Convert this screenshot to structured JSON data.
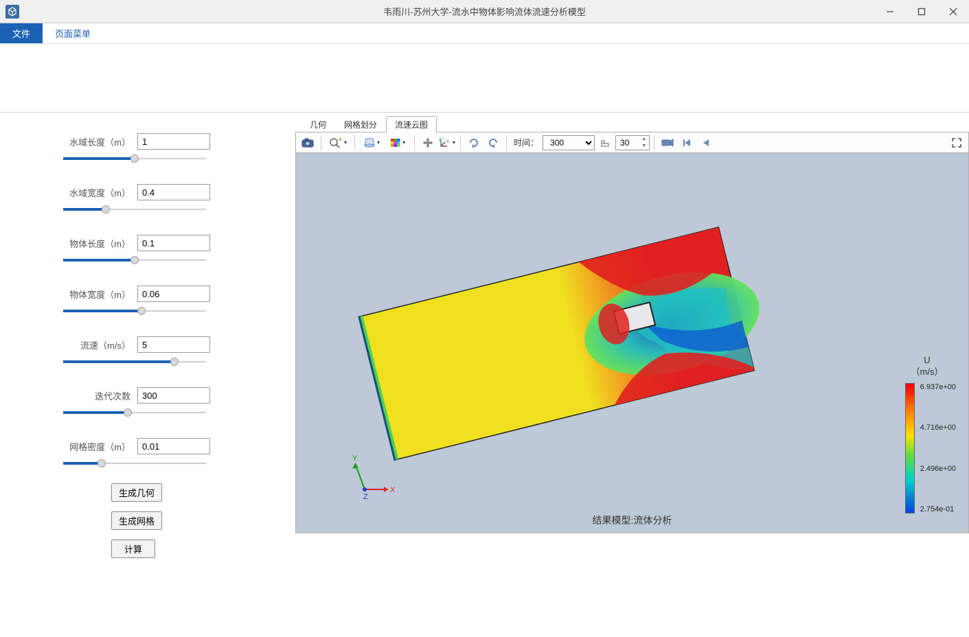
{
  "window": {
    "title": "韦雨川-苏州大学-流水中物体影响流体流速分析模型",
    "icon_bg": "#3b6ea5"
  },
  "menu": {
    "items": [
      "文件",
      "页面菜单"
    ],
    "active_index": 0
  },
  "params": [
    {
      "label": "水域长度（m）",
      "value": "1",
      "slider_fill_pct": 50,
      "thumb_pct": 50
    },
    {
      "label": "水域宽度（m）",
      "value": "0.4",
      "slider_fill_pct": 30,
      "thumb_pct": 30
    },
    {
      "label": "物体长度（m）",
      "value": "0.1",
      "slider_fill_pct": 50,
      "thumb_pct": 50
    },
    {
      "label": "物体宽度（m）",
      "value": "0.06",
      "slider_fill_pct": 55,
      "thumb_pct": 55
    },
    {
      "label": "流速（m/s）",
      "value": "5",
      "slider_fill_pct": 78,
      "thumb_pct": 78
    },
    {
      "label": "迭代次数",
      "value": "300",
      "slider_fill_pct": 45,
      "thumb_pct": 45
    },
    {
      "label": "网格密度（m）",
      "value": "0.01",
      "slider_fill_pct": 27,
      "thumb_pct": 27
    }
  ],
  "buttons": {
    "b1": "生成几何",
    "b2": "生成网格",
    "b3": "计算"
  },
  "view_tabs": {
    "items": [
      "几何",
      "网格划分",
      "流速云图"
    ],
    "active_index": 2
  },
  "toolbar": {
    "time_label": "时间：",
    "time_value": "300",
    "fps_value": "30"
  },
  "result": {
    "label": "结果模型:流体分析",
    "colorbar": {
      "title": "U",
      "unit": "（m/s）",
      "ticks": [
        "6.937e+00",
        "4.716e+00",
        "2.496e+00",
        "2.754e-01"
      ],
      "gradient_stops": [
        "#f00000",
        "#ff7800",
        "#ffe000",
        "#60e040",
        "#00d0d0",
        "#0040e0"
      ]
    },
    "canvas_bg": "#bdc9d6",
    "axis_labels": {
      "x": "X",
      "y": "Y",
      "z": "Z"
    },
    "axis_colors": {
      "x": "#e02020",
      "y": "#10a010",
      "z": "#2040d0"
    }
  }
}
